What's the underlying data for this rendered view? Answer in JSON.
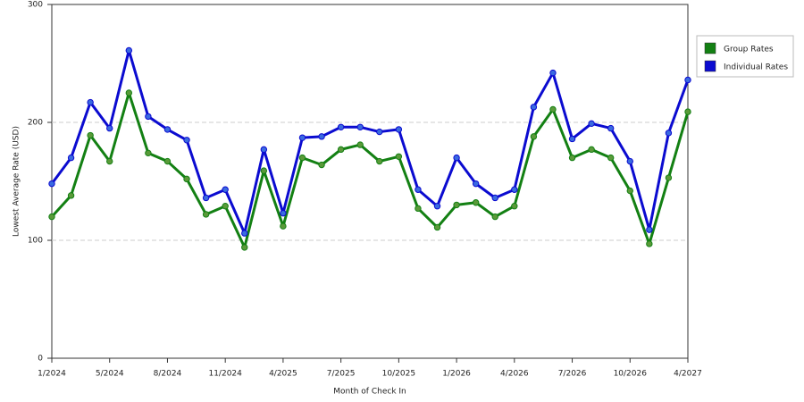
{
  "chart_data": {
    "type": "line",
    "x_label": "Month of Check In",
    "y_label": "Lowest Average Rate (USD)",
    "categories": [
      "1/2024",
      null,
      null,
      "5/2024",
      null,
      null,
      "8/2024",
      null,
      null,
      "11/2024",
      null,
      null,
      "4/2025",
      null,
      null,
      "7/2025",
      null,
      null,
      "10/2025",
      null,
      null,
      "1/2026",
      null,
      null,
      "4/2026",
      null,
      null,
      "7/2026",
      null,
      null,
      "10/2026",
      null,
      null,
      "4/2027"
    ],
    "series": [
      {
        "name": "Group Rates",
        "color": "#138013",
        "marker_color": "#5a9a3a",
        "values": [
          120,
          138,
          189,
          167,
          225,
          174,
          167,
          152,
          122,
          129,
          94,
          159,
          112,
          170,
          164,
          177,
          181,
          167,
          171,
          127,
          111,
          130,
          132,
          120,
          129,
          188,
          211,
          170,
          177,
          170,
          142,
          97,
          153,
          209
        ]
      },
      {
        "name": "Individual Rates",
        "color": "#0b0bd0",
        "marker_color": "#3a6ae0",
        "values": [
          148,
          170,
          217,
          195,
          261,
          205,
          194,
          185,
          136,
          143,
          106,
          177,
          123,
          187,
          188,
          196,
          196,
          192,
          194,
          143,
          129,
          170,
          148,
          136,
          143,
          213,
          242,
          186,
          199,
          195,
          167,
          109,
          191,
          236
        ]
      }
    ],
    "ylim": [
      0,
      300
    ],
    "yticks": [
      0,
      100,
      200,
      300
    ],
    "grid": true,
    "legend": "right"
  }
}
